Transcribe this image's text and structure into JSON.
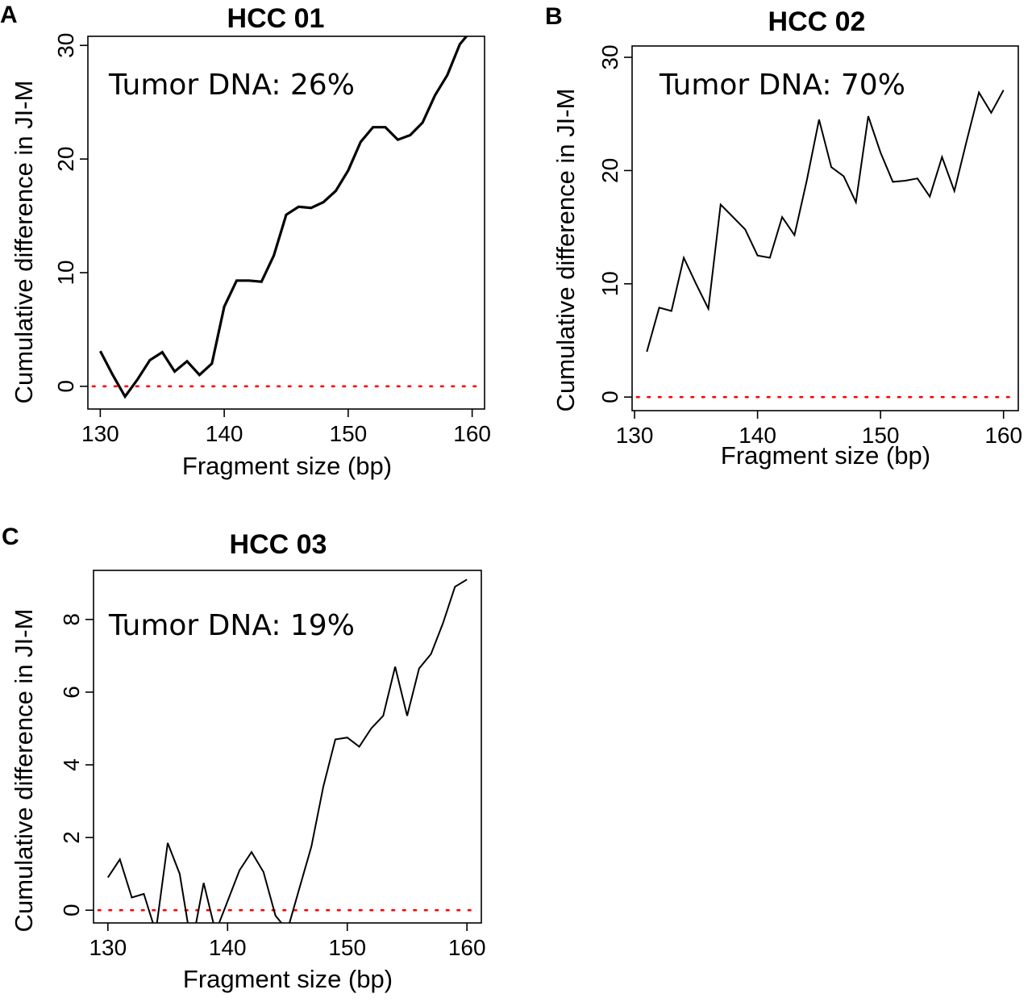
{
  "chart_data": [
    {
      "type": "line",
      "panel_letter": "A",
      "title": "HCC 01",
      "xlabel": "Fragment size (bp)",
      "ylabel": "Cumulative difference in JI-M",
      "annotation": "Tumor DNA: 26%",
      "xlim": [
        129,
        161
      ],
      "ylim": [
        -2,
        30.8
      ],
      "xticks": [
        130,
        140,
        150,
        160
      ],
      "yticks": [
        0,
        10,
        20,
        30
      ],
      "reference_line": {
        "y": 0,
        "color": "#ff0000",
        "style": "dotted"
      },
      "line_color": "#000000",
      "line_weight": "bold",
      "series": [
        {
          "x": [
            130,
            131,
            132,
            133,
            134,
            135,
            136,
            137,
            138,
            139,
            140,
            141,
            142,
            143,
            144,
            145,
            146,
            147,
            148,
            149,
            150,
            151,
            152,
            153,
            154,
            155,
            156,
            157,
            158,
            159,
            160,
            161
          ],
          "values": [
            3.1,
            1.0,
            -0.9,
            0.6,
            2.3,
            3.0,
            1.3,
            2.2,
            1.0,
            2.0,
            7.0,
            9.3,
            9.3,
            9.2,
            11.5,
            15.1,
            15.8,
            15.7,
            16.2,
            17.2,
            19.0,
            21.5,
            22.8,
            22.8,
            21.7,
            22.1,
            23.2,
            25.6,
            27.4,
            30.1,
            31.4,
            31.6
          ]
        }
      ]
    },
    {
      "type": "line",
      "panel_letter": "B",
      "title": "HCC 02",
      "xlabel": "Fragment size (bp)",
      "ylabel": "Cumulative difference in JI-M",
      "annotation": "Tumor DNA: 70%",
      "xlim": [
        129.8,
        161.2
      ],
      "ylim": [
        -1.2,
        31.0
      ],
      "xticks": [
        130,
        140,
        150,
        160
      ],
      "yticks": [
        0,
        10,
        20,
        30
      ],
      "reference_line": {
        "y": 0,
        "color": "#ff0000",
        "style": "dotted"
      },
      "line_color": "#000000",
      "line_weight": "normal",
      "series": [
        {
          "x": [
            131,
            132,
            133,
            134,
            135,
            136,
            137,
            138,
            139,
            140,
            141,
            142,
            143,
            144,
            145,
            146,
            147,
            148,
            149,
            150,
            151,
            152,
            153,
            154,
            155,
            156,
            157,
            158,
            159,
            160
          ],
          "values": [
            4.0,
            7.9,
            7.6,
            12.3,
            10.0,
            7.8,
            17.0,
            15.9,
            14.8,
            12.5,
            12.3,
            15.9,
            14.3,
            19.1,
            24.5,
            20.3,
            19.5,
            17.2,
            24.8,
            21.6,
            19.0,
            19.1,
            19.3,
            17.7,
            21.2,
            18.2,
            22.6,
            26.9,
            25.1,
            27.1
          ]
        }
      ]
    },
    {
      "type": "line",
      "panel_letter": "C",
      "title": "HCC 03",
      "xlabel": "Fragment size (bp)",
      "ylabel": "Cumulative difference in JI-M",
      "annotation": "Tumor DNA: 19%",
      "xlim": [
        128.8,
        161.2
      ],
      "ylim": [
        -0.35,
        9.35
      ],
      "xticks": [
        130,
        140,
        150,
        160
      ],
      "yticks": [
        0,
        2,
        4,
        6,
        8
      ],
      "reference_line": {
        "y": 0,
        "color": "#ff0000",
        "style": "dotted"
      },
      "line_color": "#000000",
      "line_weight": "normal",
      "series": [
        {
          "x": [
            130,
            131,
            132,
            133,
            134,
            135,
            136,
            137,
            138,
            139,
            140,
            141,
            142,
            143,
            144,
            145,
            146,
            147,
            148,
            149,
            150,
            151,
            152,
            153,
            154,
            155,
            156,
            157,
            158,
            159,
            160
          ],
          "values": [
            0.9,
            1.4,
            0.35,
            0.45,
            -0.6,
            1.85,
            1.0,
            -1.0,
            0.75,
            -0.6,
            0.25,
            1.1,
            1.6,
            1.05,
            -0.15,
            -0.55,
            0.6,
            1.75,
            3.4,
            4.7,
            4.75,
            4.5,
            5.0,
            5.35,
            6.7,
            5.35,
            6.65,
            7.05,
            7.9,
            8.9,
            9.1
          ]
        }
      ]
    }
  ]
}
